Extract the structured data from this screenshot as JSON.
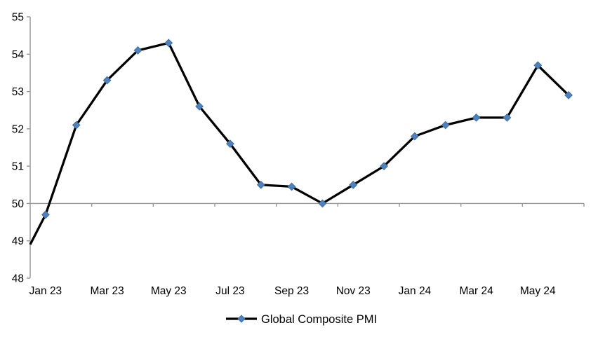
{
  "chart_data": {
    "type": "line",
    "title": "",
    "categories": [
      "Jan 23",
      "Feb 23",
      "Mar 23",
      "Apr 23",
      "May 23",
      "Jun 23",
      "Jul 23",
      "Aug 23",
      "Sep 23",
      "Oct 23",
      "Nov 23",
      "Dec 23",
      "Jan 24",
      "Feb 24",
      "Mar 24",
      "Apr 24",
      "May 24",
      "Jun 24"
    ],
    "series": [
      {
        "name": "Global Composite PMI",
        "values": [
          49.7,
          52.1,
          53.3,
          54.1,
          54.3,
          52.6,
          51.6,
          50.5,
          50.45,
          50.0,
          50.5,
          51.0,
          51.8,
          52.1,
          52.3,
          52.3,
          53.7,
          52.9
        ],
        "edge_entry_value": 48.9,
        "line_color": "#000000",
        "marker": "diamond",
        "marker_color": "#4F81BD",
        "marker_edge_color": "#3E6FA6"
      }
    ],
    "y_axis": {
      "min": 48,
      "max": 55,
      "step": 1,
      "tick_labels": [
        "48",
        "49",
        "50",
        "51",
        "52",
        "53",
        "54",
        "55"
      ]
    },
    "x_axis": {
      "tick_labels": [
        "Jan 23",
        "Mar 23",
        "May 23",
        "Jul 23",
        "Sep 23",
        "Nov 23",
        "Jan 24",
        "Mar 24",
        "May 24"
      ],
      "label_every_n_categories": 2,
      "axis_cross_value": 50
    },
    "legend": {
      "position": "bottom",
      "entries": [
        {
          "label": "Global Composite PMI",
          "marker": "diamond",
          "marker_color": "#4F81BD",
          "line_color": "#000000"
        }
      ]
    },
    "grid": "off",
    "colors": {
      "axis": "#969696",
      "text": "#000000",
      "background": "#ffffff"
    }
  }
}
